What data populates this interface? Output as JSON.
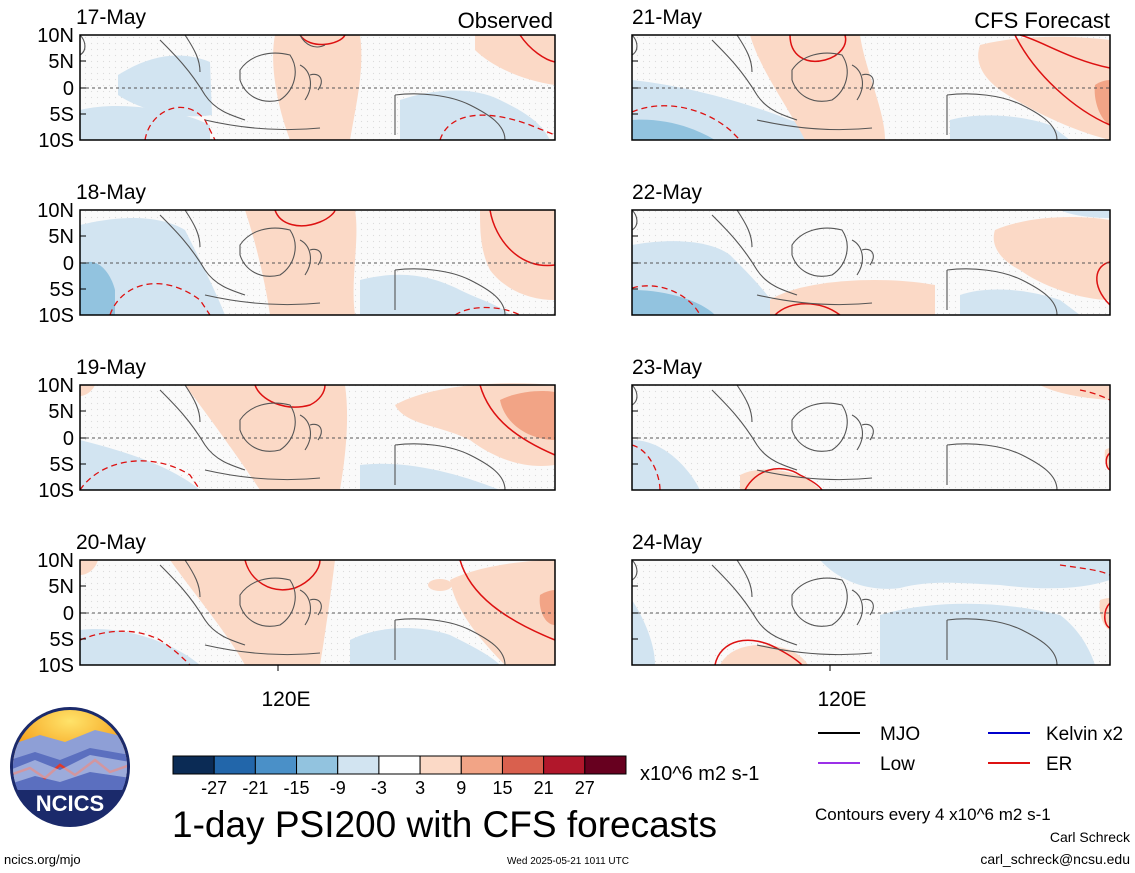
{
  "figure": {
    "title": "1-day PSI200 with CFS forecasts",
    "panel_tag_observed": "Observed",
    "panel_tag_forecast": "CFS Forecast",
    "lon_tick": "120E",
    "colorbar_units": "x10^6 m2 s-1",
    "contour_note": "Contours every 4 x10^6 m2 s-1",
    "author": "Carl Schreck",
    "email": "carl_schreck@ncsu.edu",
    "site": "ncics.org/mjo",
    "timestamp": "Wed 2025-05-21 1011 UTC",
    "logo_text": "NCICS"
  },
  "legend": [
    {
      "label": "MJO",
      "color": "#000000"
    },
    {
      "label": "Kelvin x2",
      "color": "#0000cc"
    },
    {
      "label": "Low",
      "color": "#9b30e8"
    },
    {
      "label": "ER",
      "color": "#dd1111"
    }
  ],
  "colorbar": {
    "colors": [
      "#0b2b55",
      "#2266aa",
      "#4a90c8",
      "#92c3df",
      "#d2e4f1",
      "#ffffff",
      "#fbd9c6",
      "#f2a486",
      "#d9604e",
      "#b1172b",
      "#67001f"
    ],
    "labels": [
      "-27",
      "-21",
      "-15",
      "-9",
      "-3",
      "3",
      "9",
      "15",
      "21",
      "27"
    ]
  },
  "chart_data": {
    "type": "heatmap",
    "variable": "PSI200",
    "lat_ticks": [
      "10N",
      "5N",
      "0",
      "5S",
      "10S"
    ],
    "lat_range": [
      -10,
      10
    ],
    "lon_ticks": [
      "120E"
    ],
    "panels": [
      {
        "date": "17-May",
        "kind": "Observed"
      },
      {
        "date": "18-May",
        "kind": "Observed"
      },
      {
        "date": "19-May",
        "kind": "Observed"
      },
      {
        "date": "20-May",
        "kind": "Observed"
      },
      {
        "date": "21-May",
        "kind": "CFS Forecast"
      },
      {
        "date": "22-May",
        "kind": "CFS Forecast"
      },
      {
        "date": "23-May",
        "kind": "CFS Forecast"
      },
      {
        "date": "24-May",
        "kind": "CFS Forecast"
      }
    ]
  }
}
